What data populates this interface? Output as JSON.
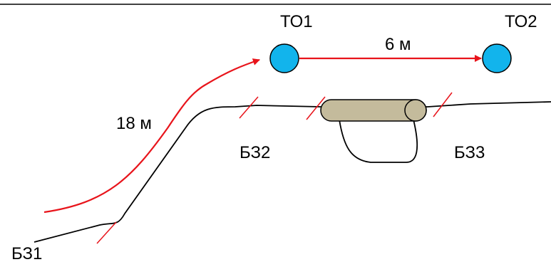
{
  "diagram": {
    "nodes": [
      {
        "id": "to1",
        "label": "ТО1",
        "color": "#12b4ec"
      },
      {
        "id": "to2",
        "label": "ТО2",
        "color": "#12b4ec"
      }
    ],
    "links": [
      {
        "id": "link-to1-to2",
        "from": "to1",
        "to": "to2",
        "length_label": "6 м",
        "color": "#e8141b"
      },
      {
        "id": "route-to-to1",
        "to": "to1",
        "length_label": "18 м",
        "color": "#e8141b"
      }
    ],
    "zones": [
      {
        "id": "bz1",
        "label": "БЗ1"
      },
      {
        "id": "bz2",
        "label": "БЗ2"
      },
      {
        "id": "bz3",
        "label": "БЗ3"
      }
    ],
    "coupling": {
      "fill": "#c4bb9c",
      "stroke": "#000000"
    },
    "cable_color": "#000000",
    "marker_color": "#e8141b"
  }
}
